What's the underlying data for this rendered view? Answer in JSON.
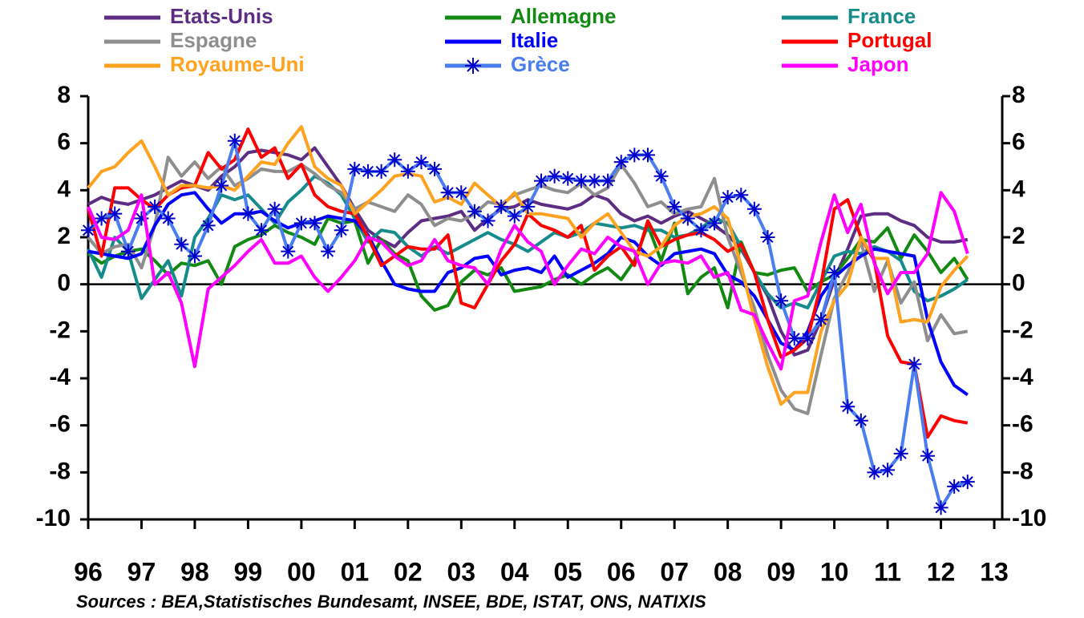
{
  "chart_data": {
    "type": "line",
    "note": "Sources : BEA,Statistisches Bundesamt, INSEE, BDE, ISTAT, ONS, NATIXIS",
    "x": [
      1996,
      1996.25,
      1996.5,
      1996.75,
      1997,
      1997.25,
      1997.5,
      1997.75,
      1998,
      1998.25,
      1998.5,
      1998.75,
      1999,
      1999.25,
      1999.5,
      1999.75,
      2000,
      2000.25,
      2000.5,
      2000.75,
      2001,
      2001.25,
      2001.5,
      2001.75,
      2002,
      2002.25,
      2002.5,
      2002.75,
      2003,
      2003.25,
      2003.5,
      2003.75,
      2004,
      2004.25,
      2004.5,
      2004.75,
      2005,
      2005.25,
      2005.5,
      2005.75,
      2006,
      2006.25,
      2006.5,
      2006.75,
      2007,
      2007.25,
      2007.5,
      2007.75,
      2008,
      2008.25,
      2008.5,
      2008.75,
      2009,
      2009.25,
      2009.5,
      2009.75,
      2010,
      2010.25,
      2010.5,
      2010.75,
      2011,
      2011.25,
      2011.5,
      2011.75,
      2012,
      2012.25,
      2012.5
    ],
    "xlim": [
      1996,
      2013.15
    ],
    "xticks": [
      {
        "value": 1996,
        "label": "96"
      },
      {
        "value": 1997,
        "label": "97"
      },
      {
        "value": 1998,
        "label": "98"
      },
      {
        "value": 1999,
        "label": "99"
      },
      {
        "value": 2000,
        "label": "00"
      },
      {
        "value": 2001,
        "label": "01"
      },
      {
        "value": 2002,
        "label": "02"
      },
      {
        "value": 2003,
        "label": "03"
      },
      {
        "value": 2004,
        "label": "04"
      },
      {
        "value": 2005,
        "label": "05"
      },
      {
        "value": 2006,
        "label": "06"
      },
      {
        "value": 2007,
        "label": "07"
      },
      {
        "value": 2008,
        "label": "08"
      },
      {
        "value": 2009,
        "label": "09"
      },
      {
        "value": 2010,
        "label": "10"
      },
      {
        "value": 2011,
        "label": "11"
      },
      {
        "value": 2012,
        "label": "12"
      },
      {
        "value": 2013,
        "label": "13"
      }
    ],
    "ylim": [
      -10,
      8
    ],
    "yticks": [
      -10,
      -8,
      -6,
      -4,
      -2,
      0,
      2,
      4,
      6,
      8
    ],
    "y2lim": [
      -10,
      8
    ],
    "y2ticks": [
      -10,
      -8,
      -6,
      -4,
      -2,
      0,
      2,
      4,
      6,
      8
    ],
    "reference_line": 0,
    "grid": false,
    "legend": "top",
    "series": [
      {
        "name": "Etats-Unis",
        "color": "#5c2d83",
        "values": [
          3.4,
          3.7,
          3.5,
          3.4,
          3.6,
          3.8,
          4.1,
          4.4,
          4.2,
          4.0,
          4.6,
          5.0,
          5.6,
          5.7,
          5.6,
          5.5,
          5.3,
          5.8,
          5.0,
          4.2,
          3.2,
          2.3,
          1.9,
          1.6,
          2.2,
          2.7,
          2.8,
          2.9,
          3.1,
          2.3,
          2.8,
          3.2,
          3.3,
          3.6,
          3.4,
          3.3,
          3.2,
          3.4,
          3.8,
          3.6,
          3.0,
          2.7,
          2.9,
          2.6,
          2.9,
          3.1,
          2.8,
          2.5,
          2.1,
          1.5,
          0.5,
          -0.5,
          -2.0,
          -3.0,
          -2.8,
          -1.5,
          0.2,
          1.5,
          2.9,
          3.0,
          3.0,
          2.7,
          2.5,
          2.0,
          1.8,
          1.8,
          1.9
        ]
      },
      {
        "name": "Allemagne",
        "color": "#128a12",
        "values": [
          1.3,
          0.9,
          1.2,
          1.4,
          1.5,
          1.0,
          0.4,
          0.9,
          0.8,
          1.0,
          0.0,
          1.6,
          1.9,
          2.1,
          2.5,
          2.2,
          2.0,
          1.7,
          2.8,
          2.6,
          2.7,
          0.9,
          1.9,
          1.3,
          1.0,
          -0.5,
          -1.1,
          -0.9,
          0.1,
          0.6,
          0.4,
          0.7,
          -0.3,
          -0.2,
          -0.1,
          0.2,
          0.4,
          0.0,
          0.4,
          0.7,
          0.2,
          1.0,
          2.5,
          1.0,
          2.6,
          -0.4,
          0.3,
          0.7,
          -1.0,
          1.8,
          0.5,
          0.4,
          0.6,
          0.7,
          -0.3,
          0.1,
          0.4,
          1.1,
          1.9,
          1.8,
          2.4,
          1.1,
          2.1,
          1.4,
          0.5,
          1.1,
          0.2
        ]
      },
      {
        "name": "France",
        "color": "#168b8b",
        "values": [
          1.5,
          0.3,
          2.0,
          1.4,
          -0.6,
          0.2,
          1.0,
          -0.5,
          2.0,
          2.8,
          3.8,
          3.6,
          3.8,
          3.2,
          2.6,
          3.5,
          4.0,
          4.6,
          4.3,
          3.8,
          2.8,
          1.8,
          2.3,
          2.2,
          1.6,
          1.2,
          1.6,
          1.3,
          1.6,
          1.9,
          2.2,
          1.9,
          1.7,
          1.4,
          1.8,
          2.2,
          2.0,
          2.2,
          2.6,
          2.5,
          2.4,
          2.5,
          2.3,
          2.3,
          2.0,
          2.1,
          2.4,
          2.8,
          2.6,
          1.6,
          0.5,
          -0.4,
          -1.0,
          -0.8,
          -1.0,
          0.1,
          1.2,
          1.4,
          1.3,
          1.6,
          1.4,
          1.0,
          -0.3,
          -0.7,
          -0.5,
          -0.2,
          0.2
        ]
      },
      {
        "name": "Espagne",
        "color": "#8e8e8e",
        "values": [
          2.0,
          1.3,
          1.6,
          1.7,
          0.7,
          2.5,
          5.4,
          4.6,
          5.2,
          4.5,
          5.0,
          4.2,
          4.5,
          4.9,
          4.8,
          4.8,
          5.1,
          4.7,
          4.2,
          3.9,
          3.2,
          3.5,
          3.3,
          3.1,
          3.8,
          3.4,
          2.5,
          2.8,
          2.7,
          3.0,
          3.5,
          3.4,
          3.8,
          4.0,
          4.2,
          4.0,
          3.9,
          4.3,
          3.8,
          4.1,
          5.1,
          4.3,
          3.3,
          3.5,
          3.0,
          3.2,
          3.3,
          4.5,
          2.0,
          0.5,
          -1.0,
          -3.0,
          -4.5,
          -5.3,
          -5.5,
          -3.0,
          -0.6,
          0.5,
          1.8,
          -0.3,
          1.0,
          -0.8,
          0.1,
          -2.4,
          -1.3,
          -2.1,
          -2.0
        ]
      },
      {
        "name": "Italie",
        "color": "#0000ff",
        "values": [
          1.4,
          1.3,
          1.2,
          1.1,
          1.3,
          2.5,
          3.4,
          3.8,
          3.9,
          3.2,
          2.6,
          3.0,
          3.0,
          3.1,
          2.7,
          2.4,
          2.6,
          2.7,
          2.9,
          2.8,
          2.7,
          2.1,
          1.0,
          0.0,
          -0.2,
          -0.3,
          -0.3,
          0.5,
          0.7,
          1.1,
          1.2,
          0.4,
          0.6,
          0.7,
          0.5,
          1.2,
          0.3,
          0.6,
          0.9,
          1.3,
          2.0,
          1.8,
          1.2,
          0.8,
          1.3,
          1.4,
          1.5,
          1.3,
          0.4,
          0.1,
          -0.5,
          -1.5,
          -2.5,
          -2.8,
          -2.0,
          -0.5,
          0.3,
          0.8,
          1.2,
          1.5,
          1.4,
          1.3,
          1.2,
          -1.5,
          -3.3,
          -4.3,
          -4.7
        ]
      },
      {
        "name": "Portugal",
        "color": "#ff0000",
        "values": [
          3.2,
          1.2,
          4.1,
          4.1,
          3.6,
          3.2,
          3.8,
          4.1,
          4.2,
          5.6,
          4.9,
          5.3,
          6.6,
          5.4,
          5.8,
          4.5,
          5.1,
          3.8,
          3.3,
          3.1,
          3.0,
          2.0,
          0.8,
          1.2,
          1.6,
          1.5,
          1.5,
          2.1,
          -0.8,
          -1.0,
          0.0,
          1.0,
          1.7,
          3.0,
          2.5,
          2.3,
          2.0,
          2.5,
          0.6,
          1.2,
          1.6,
          0.8,
          2.7,
          1.6,
          1.9,
          2.1,
          2.2,
          1.9,
          1.4,
          1.7,
          0.5,
          -1.5,
          -3.1,
          -2.8,
          -2.3,
          0.0,
          3.2,
          3.6,
          2.0,
          1.0,
          -2.2,
          -3.3,
          -3.4,
          -6.5,
          -5.6,
          -5.8,
          -5.9
        ]
      },
      {
        "name": "Royaume-Uni",
        "color": "#ffa21f",
        "values": [
          4.1,
          4.8,
          5.0,
          5.6,
          6.1,
          5.0,
          3.8,
          4.2,
          4.2,
          4.1,
          4.2,
          4.0,
          4.6,
          5.2,
          5.1,
          6.0,
          6.7,
          5.0,
          4.5,
          4.2,
          3.0,
          3.5,
          4.0,
          4.6,
          4.7,
          4.6,
          3.5,
          3.7,
          3.4,
          4.3,
          3.8,
          3.3,
          3.9,
          3.0,
          3.0,
          2.9,
          2.8,
          2.0,
          2.6,
          3.0,
          2.2,
          1.4,
          1.2,
          1.6,
          2.5,
          2.9,
          3.0,
          3.3,
          2.8,
          0.8,
          -1.5,
          -3.5,
          -5.1,
          -4.6,
          -4.6,
          -2.0,
          -0.7,
          0.0,
          2.0,
          1.1,
          1.1,
          -1.6,
          -1.5,
          -1.6,
          -0.1,
          0.6,
          1.2
        ]
      },
      {
        "name": "Grèce",
        "color": "#4a7ef0",
        "marker": "star",
        "values": [
          2.3,
          2.8,
          3.0,
          1.4,
          2.8,
          3.3,
          2.8,
          1.7,
          1.2,
          2.5,
          4.2,
          6.1,
          3.0,
          2.3,
          3.2,
          1.4,
          2.6,
          2.6,
          1.4,
          2.3,
          4.9,
          4.8,
          4.8,
          5.3,
          4.8,
          5.2,
          4.9,
          3.9,
          3.9,
          3.1,
          2.7,
          3.3,
          2.9,
          3.3,
          4.4,
          4.6,
          4.5,
          4.4,
          4.4,
          4.4,
          5.2,
          5.5,
          5.5,
          4.6,
          3.3,
          2.8,
          2.3,
          2.6,
          3.7,
          3.8,
          3.2,
          2.0,
          -0.7,
          -2.3,
          -2.3,
          -1.5,
          0.5,
          -5.2,
          -5.8,
          -8.0,
          -7.9,
          -7.2,
          -3.4,
          -7.3,
          -9.5,
          -8.6,
          -8.4
        ]
      },
      {
        "name": "Japon",
        "color": "#ff00ff",
        "values": [
          3.3,
          2.0,
          1.9,
          2.3,
          3.8,
          0.0,
          0.5,
          -0.8,
          -3.5,
          -0.2,
          0.3,
          0.8,
          1.4,
          1.9,
          0.9,
          0.9,
          1.2,
          0.3,
          -0.3,
          0.3,
          1.0,
          2.0,
          1.8,
          1.2,
          0.8,
          1.0,
          1.9,
          1.0,
          0.8,
          0.7,
          0.0,
          1.5,
          2.5,
          1.8,
          1.4,
          0.0,
          0.8,
          1.5,
          1.3,
          2.0,
          1.6,
          1.4,
          0.0,
          0.9,
          1.0,
          0.9,
          1.2,
          0.3,
          0.5,
          -1.1,
          -1.3,
          -2.5,
          -3.6,
          -0.7,
          -0.5,
          1.8,
          3.8,
          2.2,
          3.4,
          0.9,
          -0.4,
          0.5,
          0.5,
          1.3,
          3.9,
          3.1,
          1.3
        ]
      }
    ]
  }
}
